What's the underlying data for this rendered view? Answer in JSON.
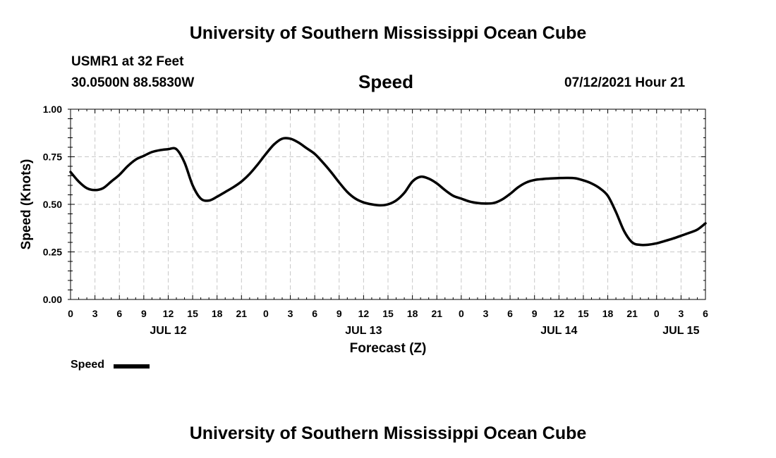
{
  "page": {
    "title_top": "University of Southern Mississippi Ocean Cube",
    "title_bottom": "University of Southern Mississippi Ocean Cube",
    "station": "USMR1 at 32 Feet",
    "coords": "30.0500N  88.5830W",
    "variable": "Speed",
    "timestamp": "07/12/2021 Hour 21"
  },
  "chart_data": {
    "type": "line",
    "title": "Speed",
    "xlabel": "Forecast (Z)",
    "ylabel": "Speed (Knots)",
    "ylim": [
      0,
      1
    ],
    "yticks": [
      0,
      0.25,
      0.5,
      0.75,
      1.0
    ],
    "ytick_labels": [
      "0.00",
      "0.25",
      "0.50",
      "0.75",
      "1.00"
    ],
    "xlim_hours": [
      0,
      78
    ],
    "xtick_hours": [
      0,
      3,
      6,
      9,
      12,
      15,
      18,
      21,
      24,
      27,
      30,
      33,
      36,
      39,
      42,
      45,
      48,
      51,
      54,
      57,
      60,
      63,
      66,
      69,
      72,
      75,
      78
    ],
    "xtick_labels": [
      "0",
      "3",
      "6",
      "9",
      "12",
      "15",
      "18",
      "21",
      "0",
      "3",
      "6",
      "9",
      "12",
      "15",
      "18",
      "21",
      "0",
      "3",
      "6",
      "9",
      "12",
      "15",
      "18",
      "21",
      "0",
      "3",
      "6"
    ],
    "date_labels": [
      {
        "hour": 12,
        "label": "JUL 12"
      },
      {
        "hour": 36,
        "label": "JUL 13"
      },
      {
        "hour": 60,
        "label": "JUL 14"
      },
      {
        "hour": 75,
        "label": "JUL 15"
      }
    ],
    "grid": true,
    "legend": {
      "placement": "bottom-left",
      "label": "Speed"
    },
    "series": [
      {
        "name": "Speed",
        "color": "#000000",
        "x": [
          0,
          1,
          2,
          3,
          4,
          5,
          6,
          7,
          8,
          9,
          10,
          11,
          12,
          13,
          14,
          15,
          16,
          17,
          18,
          19,
          20,
          21,
          22,
          23,
          24,
          25,
          26,
          27,
          28,
          29,
          30,
          31,
          32,
          33,
          34,
          35,
          36,
          37,
          38,
          39,
          40,
          41,
          42,
          43,
          44,
          45,
          46,
          47,
          48,
          49,
          50,
          51,
          52,
          53,
          54,
          55,
          56,
          57,
          58,
          59,
          60,
          61,
          62,
          63,
          64,
          65,
          66,
          67,
          68,
          69,
          70,
          71,
          72,
          73,
          74,
          75,
          76,
          77,
          78
        ],
        "values": [
          0.67,
          0.62,
          0.585,
          0.575,
          0.585,
          0.62,
          0.655,
          0.7,
          0.735,
          0.755,
          0.775,
          0.785,
          0.79,
          0.79,
          0.72,
          0.6,
          0.53,
          0.52,
          0.54,
          0.565,
          0.59,
          0.62,
          0.66,
          0.71,
          0.765,
          0.815,
          0.845,
          0.845,
          0.825,
          0.795,
          0.765,
          0.72,
          0.67,
          0.615,
          0.565,
          0.53,
          0.51,
          0.5,
          0.495,
          0.5,
          0.52,
          0.56,
          0.62,
          0.645,
          0.635,
          0.61,
          0.575,
          0.545,
          0.53,
          0.515,
          0.507,
          0.504,
          0.507,
          0.525,
          0.555,
          0.59,
          0.615,
          0.628,
          0.633,
          0.636,
          0.638,
          0.639,
          0.637,
          0.626,
          0.61,
          0.585,
          0.545,
          0.46,
          0.36,
          0.3,
          0.287,
          0.288,
          0.295,
          0.307,
          0.32,
          0.335,
          0.35,
          0.367,
          0.4
        ]
      }
    ]
  }
}
